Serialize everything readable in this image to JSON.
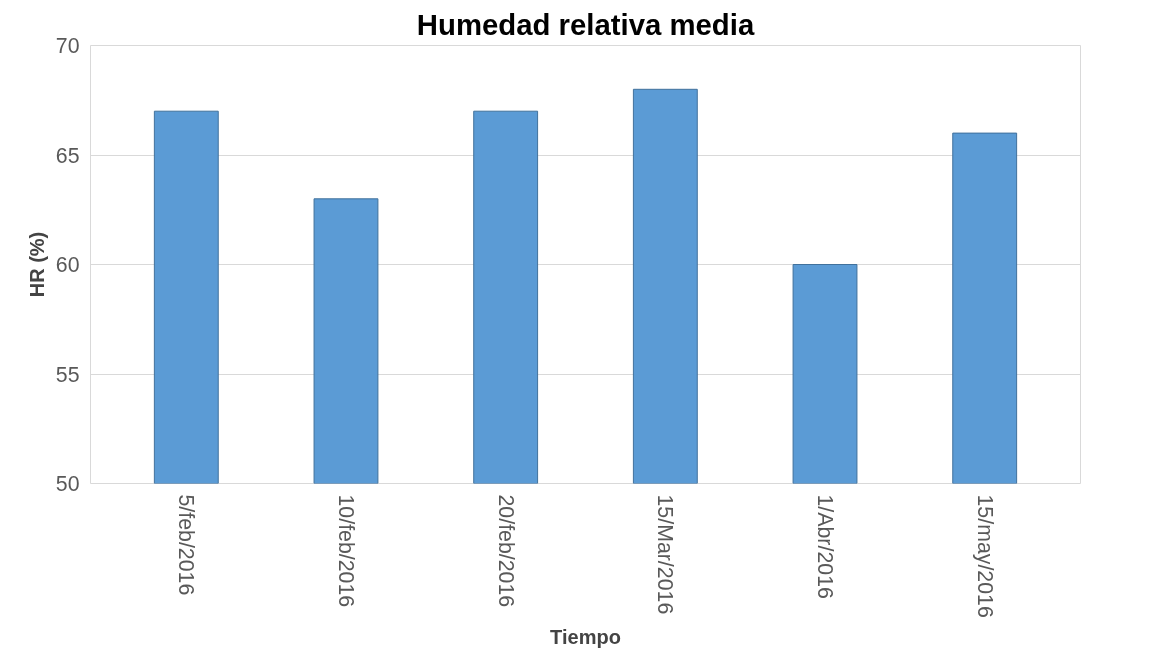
{
  "chart_data": {
    "type": "bar",
    "title": "Humedad relativa media",
    "xlabel": "Tiempo",
    "ylabel": "HR (%)",
    "categories": [
      "5/feb/2016",
      "10/feb/2016",
      "20/feb/2016",
      "15/Mar/2016",
      "1/Abr/2016",
      "15/may/2016"
    ],
    "values": [
      67,
      63,
      67,
      68,
      60,
      66
    ],
    "color": "#5b9bd5",
    "ylim": [
      50,
      70
    ],
    "yticks": [
      50,
      55,
      60,
      65,
      70
    ],
    "grid": "y"
  }
}
